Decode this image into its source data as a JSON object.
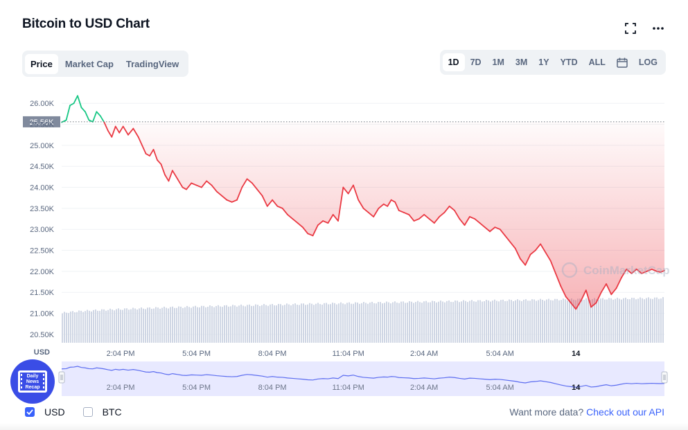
{
  "header": {
    "title": "Bitcoin to USD Chart"
  },
  "icons": {
    "fullscreen": "fullscreen-icon",
    "more": "more-icon",
    "calendar": "calendar-icon"
  },
  "tabs": [
    "Price",
    "Market Cap",
    "TradingView"
  ],
  "active_tab": "Price",
  "ranges": [
    "1D",
    "7D",
    "1M",
    "3M",
    "1Y",
    "YTD",
    "ALL"
  ],
  "active_range": "1D",
  "log_label": "LOG",
  "watermark": "CoinMarketCap",
  "badge": {
    "lines": [
      "Daily",
      "News",
      "Recap"
    ]
  },
  "footer": {
    "usd_label": "USD",
    "btc_label": "BTC",
    "usd_checked": true,
    "btc_checked": false,
    "more_text": "Want more data?",
    "api_link": "Check out our API"
  },
  "colors": {
    "up": "#16c784",
    "down": "#ea3943",
    "accent": "#3861fb",
    "volume": "#cfd6e4",
    "navigator": "#e8e9ff"
  },
  "chart_data": {
    "type": "line",
    "y_unit_label": "USD",
    "y_ticks": [
      "26.00K",
      "25.50K",
      "25.00K",
      "24.50K",
      "24.00K",
      "23.50K",
      "23.00K",
      "22.50K",
      "22.00K",
      "21.50K",
      "21.00K",
      "20.50K"
    ],
    "y_tick_values": [
      26000,
      25500,
      25000,
      24500,
      24000,
      23500,
      23000,
      22500,
      22000,
      21500,
      21000,
      20500
    ],
    "ylim": [
      20300,
      26350
    ],
    "reference_value": 25560,
    "reference_label": "25.56K",
    "x_tick_labels": [
      "2:04 PM",
      "5:04 PM",
      "8:04 PM",
      "11:04 PM",
      "2:04 AM",
      "5:04 AM",
      "14"
    ],
    "x_tick_hours": [
      1.0,
      4.0,
      7.0,
      10.0,
      13.0,
      16.0,
      19.0
    ],
    "x_range_hours": [
      -1.33,
      22.5
    ],
    "grid": true,
    "series": [
      {
        "hours": [
          -1.33,
          -1.15,
          -1.0,
          -0.85,
          -0.7,
          -0.55,
          -0.4,
          -0.25,
          -0.1,
          0.05,
          0.2,
          0.35,
          0.5,
          0.65,
          0.8,
          0.95,
          1.1,
          1.3,
          1.5,
          1.7,
          1.85,
          2.0,
          2.15,
          2.3,
          2.45,
          2.6,
          2.75,
          2.9,
          3.05,
          3.25,
          3.45,
          3.6,
          3.8,
          4.0,
          4.2,
          4.4,
          4.6,
          4.8,
          5.0,
          5.2,
          5.4,
          5.6,
          5.8,
          6.0,
          6.2,
          6.4,
          6.6,
          6.8,
          7.0,
          7.2,
          7.4,
          7.6,
          7.8,
          8.0,
          8.2,
          8.4,
          8.6,
          8.8,
          9.0,
          9.2,
          9.4,
          9.6,
          9.8,
          10.0,
          10.2,
          10.4,
          10.6,
          10.8,
          11.0,
          11.2,
          11.4,
          11.55,
          11.7,
          11.85,
          12.0,
          12.2,
          12.4,
          12.6,
          12.8,
          13.0,
          13.2,
          13.4,
          13.6,
          13.8,
          14.0,
          14.2,
          14.4,
          14.6,
          14.8,
          15.0,
          15.2,
          15.4,
          15.6,
          15.8,
          16.0,
          16.2,
          16.4,
          16.6,
          16.8,
          17.0,
          17.2,
          17.4,
          17.6,
          17.8,
          18.0,
          18.2,
          18.4,
          18.6,
          18.8,
          19.0,
          19.2,
          19.4,
          19.6,
          19.8,
          20.0,
          20.2,
          20.4,
          20.6,
          20.8,
          21.0,
          21.2,
          21.4,
          21.6,
          21.8,
          22.0,
          22.2,
          22.35,
          22.5
        ],
        "values": [
          25550,
          25600,
          25950,
          26000,
          26180,
          25900,
          25800,
          25600,
          25560,
          25800,
          25700,
          25550,
          25350,
          25200,
          25450,
          25300,
          25450,
          25250,
          25400,
          25200,
          25000,
          24800,
          24750,
          24900,
          24650,
          24550,
          24300,
          24150,
          24400,
          24200,
          24000,
          23950,
          24100,
          24050,
          24000,
          24150,
          24050,
          23900,
          23800,
          23700,
          23650,
          23700,
          24000,
          24200,
          24100,
          23950,
          23800,
          23550,
          23700,
          23550,
          23500,
          23350,
          23250,
          23150,
          23050,
          22900,
          22850,
          23100,
          23200,
          23150,
          23350,
          23200,
          24000,
          23850,
          24050,
          23700,
          23500,
          23400,
          23300,
          23500,
          23600,
          23550,
          23700,
          23650,
          23450,
          23400,
          23350,
          23200,
          23250,
          23350,
          23250,
          23150,
          23300,
          23400,
          23550,
          23450,
          23250,
          23100,
          23300,
          23250,
          23150,
          23050,
          22950,
          23050,
          23000,
          22850,
          22700,
          22550,
          22300,
          22150,
          22400,
          22500,
          22650,
          22450,
          22250,
          21950,
          21650,
          21400,
          21250,
          21100,
          21300,
          21550,
          21150,
          21250,
          21500,
          21700,
          21450,
          21600,
          21850,
          22050,
          21950,
          22050,
          21950,
          22000,
          22050,
          22000,
          21980,
          22020
        ],
        "color_above_ref": "#16c784",
        "color_below_ref": "#ea3943"
      }
    ],
    "volume_hours": [
      -1.33,
      22.5
    ],
    "volume_ratio": [
      0.36,
      0.55
    ]
  }
}
